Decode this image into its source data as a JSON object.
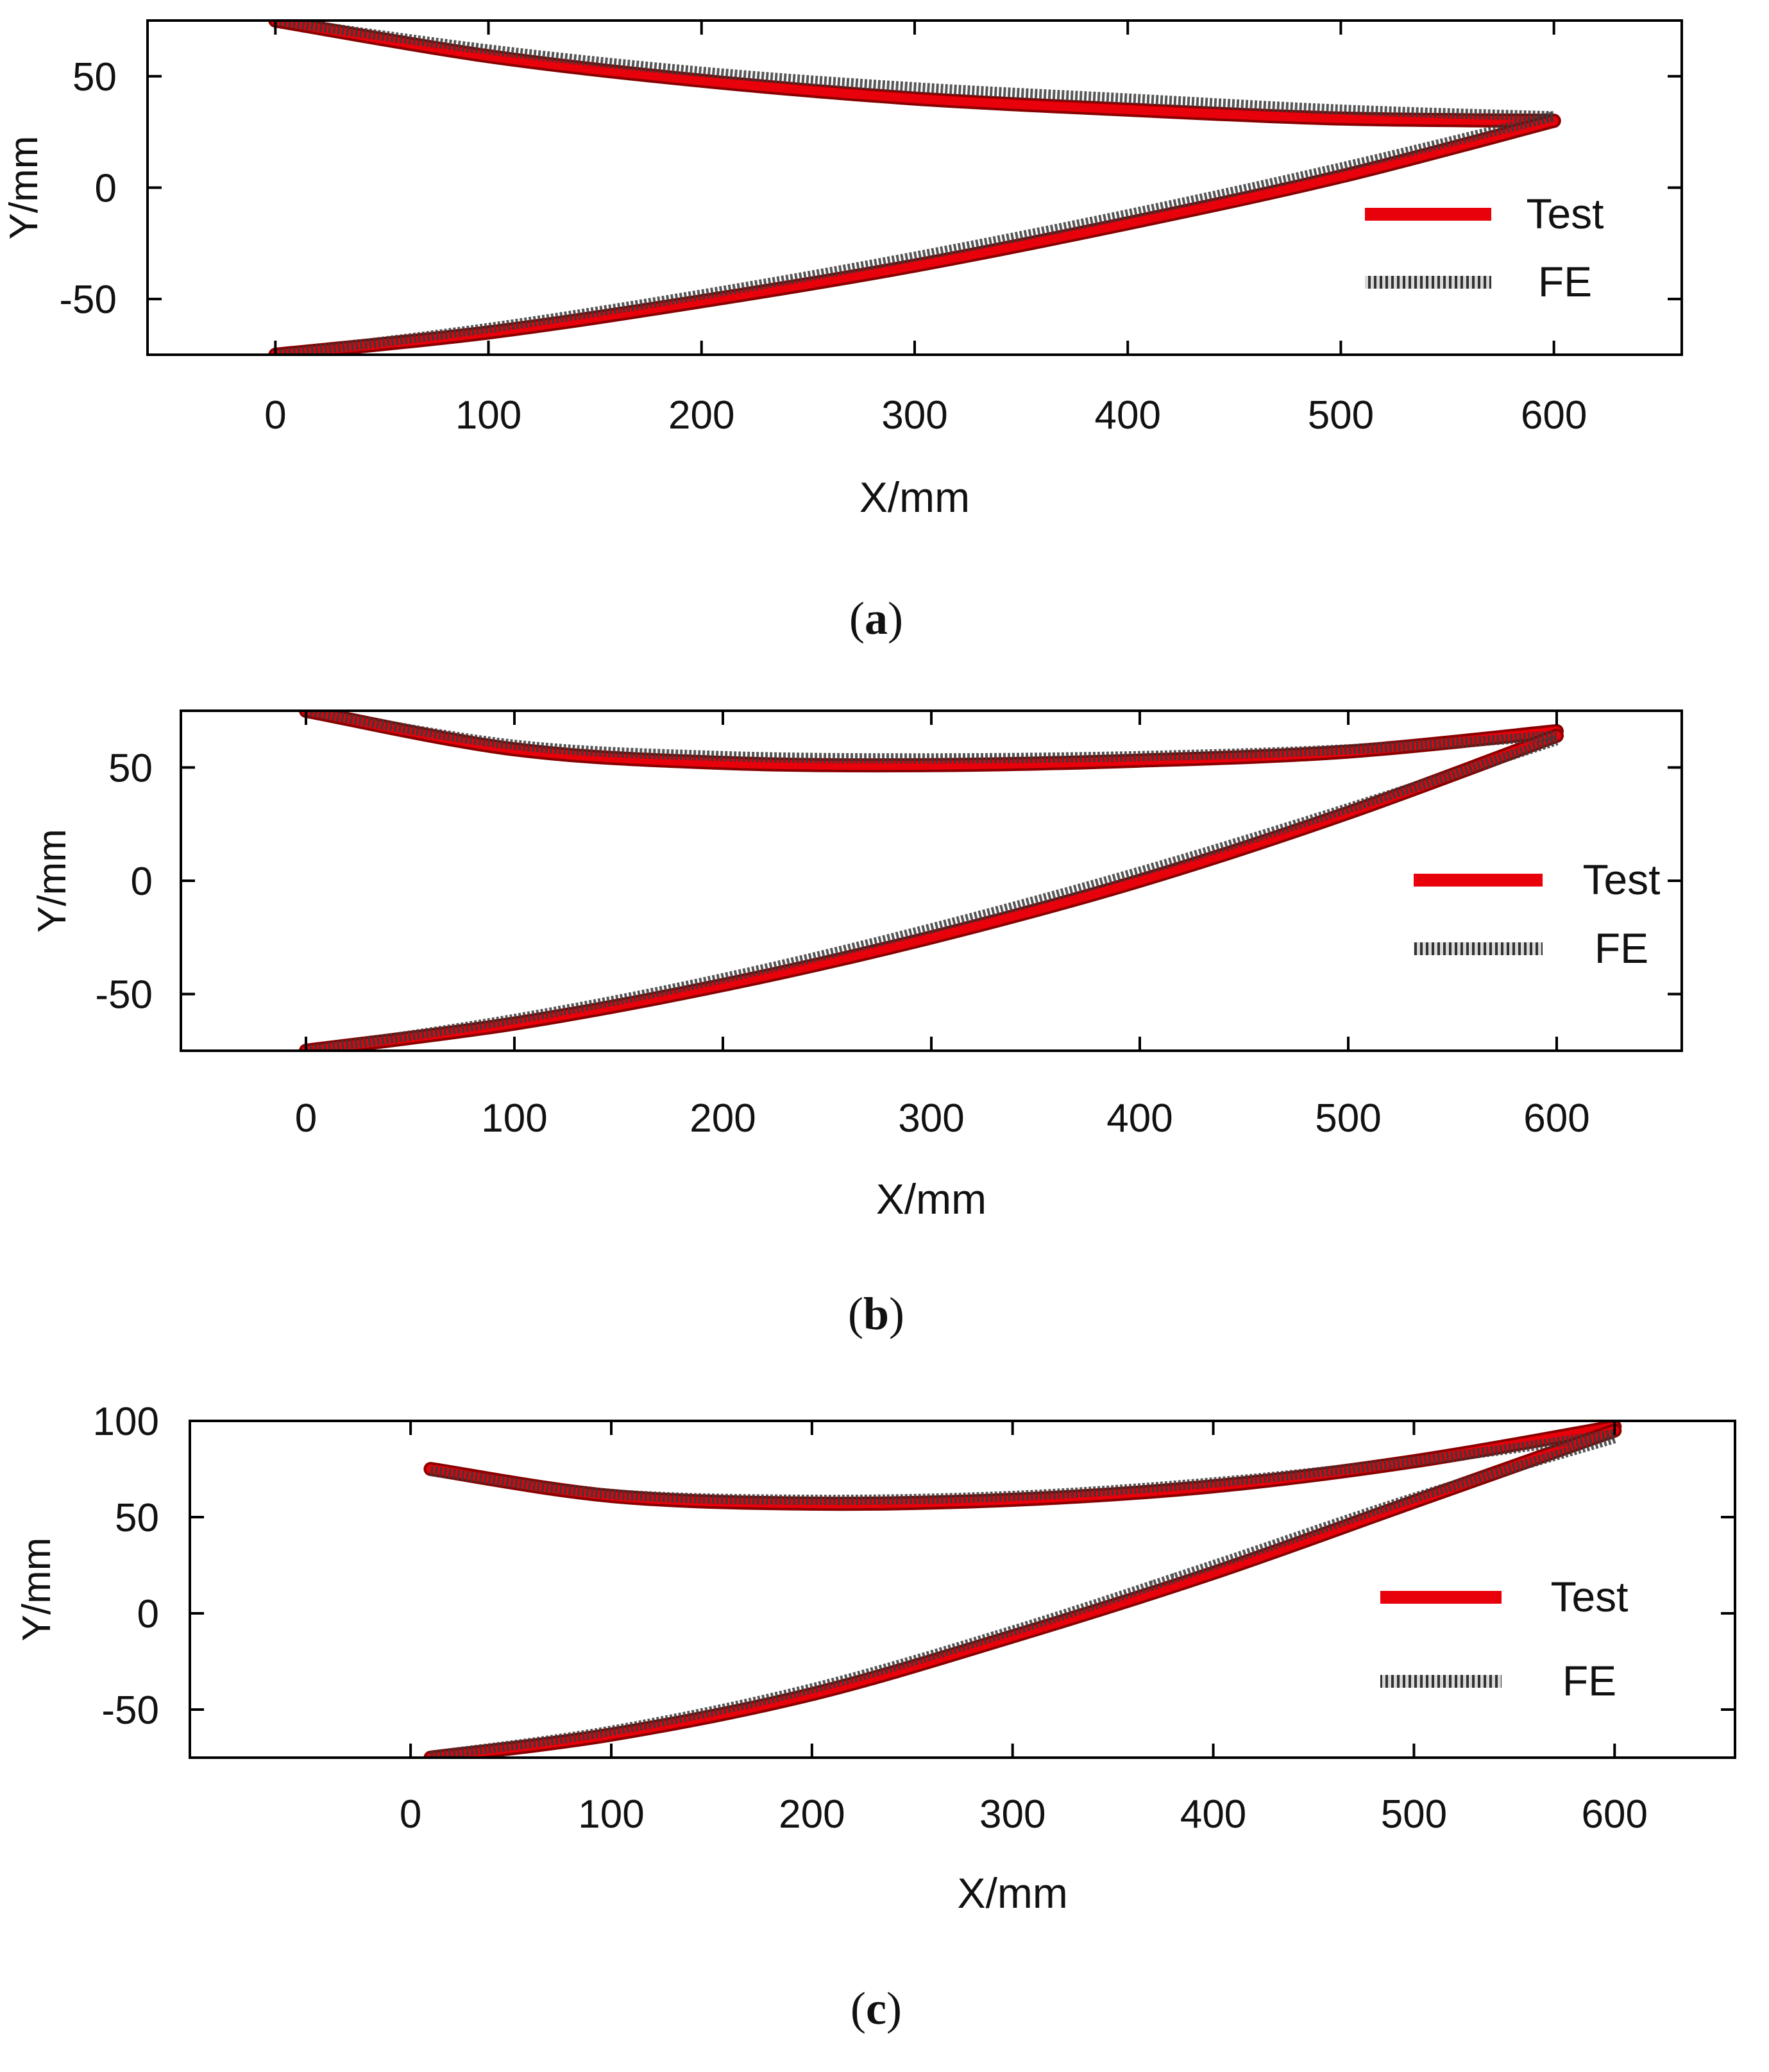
{
  "figure": {
    "captions": [
      "(a)",
      "(b)",
      "(c)"
    ],
    "caption_letters": [
      "a",
      "b",
      "c"
    ]
  },
  "colors": {
    "test": "#e8000b",
    "test_edge": "#8a0000",
    "fe": "#3a3a3a",
    "axis": "#000000"
  },
  "chart_data": [
    {
      "type": "line",
      "caption": "(a)",
      "xlabel": "X/mm",
      "ylabel": "Y/mm",
      "xlim": [
        -60,
        660
      ],
      "ylim": [
        -75,
        75
      ],
      "xticks": [
        0,
        100,
        200,
        300,
        400,
        500,
        600
      ],
      "yticks": [
        -50,
        0,
        50
      ],
      "grid": false,
      "legend_position": "right",
      "series": [
        {
          "name": "Test",
          "style": "solid",
          "curves": [
            {
              "x": [
                0,
                100,
                200,
                300,
                400,
                500,
                600
              ],
              "y": [
                75,
                59,
                48,
                40,
                35,
                31,
                30
              ]
            },
            {
              "x": [
                0,
                100,
                200,
                300,
                400,
                500,
                600
              ],
              "y": [
                -75,
                -65,
                -51,
                -35,
                -16,
                5,
                30
              ]
            }
          ]
        },
        {
          "name": "FE",
          "style": "hatched",
          "curves": [
            {
              "x": [
                0,
                100,
                200,
                300,
                400,
                500,
                600
              ],
              "y": [
                75,
                62,
                52,
                45,
                40,
                35,
                32
              ]
            },
            {
              "x": [
                0,
                100,
                200,
                300,
                400,
                500,
                600
              ],
              "y": [
                -75,
                -63,
                -48,
                -31,
                -12,
                9,
                32
              ]
            }
          ]
        }
      ]
    },
    {
      "type": "line",
      "caption": "(b)",
      "xlabel": "X/mm",
      "ylabel": "Y/mm",
      "xlim": [
        -60,
        660
      ],
      "ylim": [
        -75,
        75
      ],
      "xticks": [
        0,
        100,
        200,
        300,
        400,
        500,
        600
      ],
      "yticks": [
        -50,
        0,
        50
      ],
      "grid": false,
      "legend_position": "right",
      "series": [
        {
          "name": "Test",
          "style": "solid",
          "curves": [
            {
              "x": [
                0,
                100,
                200,
                300,
                400,
                500,
                600
              ],
              "y": [
                75,
                58,
                52,
                51,
                53,
                57,
                66
              ]
            },
            {
              "x": [
                0,
                100,
                200,
                300,
                400,
                500,
                600
              ],
              "y": [
                -75,
                -63,
                -46,
                -25,
                0,
                30,
                64
              ]
            }
          ]
        },
        {
          "name": "FE",
          "style": "hatched",
          "curves": [
            {
              "x": [
                0,
                100,
                200,
                300,
                400,
                500,
                600
              ],
              "y": [
                75,
                60,
                55,
                54,
                55,
                58,
                64
              ]
            },
            {
              "x": [
                0,
                100,
                200,
                300,
                400,
                500,
                600
              ],
              "y": [
                -75,
                -61,
                -43,
                -21,
                4,
                32,
                62
              ]
            }
          ]
        }
      ]
    },
    {
      "type": "line",
      "caption": "(c)",
      "xlabel": "X/mm",
      "ylabel": "Y/mm",
      "xlim": [
        -110,
        660
      ],
      "ylim": [
        -75,
        100
      ],
      "xticks": [
        0,
        100,
        200,
        300,
        400,
        500,
        600
      ],
      "yticks": [
        -50,
        0,
        50,
        100
      ],
      "grid": false,
      "legend_position": "right",
      "series": [
        {
          "name": "Test",
          "style": "solid",
          "curves": [
            {
              "x": [
                10,
                100,
                200,
                300,
                400,
                500,
                600
              ],
              "y": [
                75,
                61,
                57,
                59,
                66,
                79,
                97
              ]
            },
            {
              "x": [
                10,
                100,
                200,
                300,
                400,
                500,
                600
              ],
              "y": [
                -75,
                -63,
                -42,
                -12,
                21,
                58,
                95
              ]
            }
          ]
        },
        {
          "name": "FE",
          "style": "hatched",
          "curves": [
            {
              "x": [
                10,
                100,
                200,
                300,
                400,
                500,
                600
              ],
              "y": [
                74,
                62,
                59,
                61,
                68,
                79,
                93
              ]
            },
            {
              "x": [
                10,
                100,
                200,
                300,
                400,
                500,
                600
              ],
              "y": [
                -74,
                -61,
                -39,
                -9,
                25,
                60,
                91
              ]
            }
          ]
        }
      ]
    }
  ]
}
